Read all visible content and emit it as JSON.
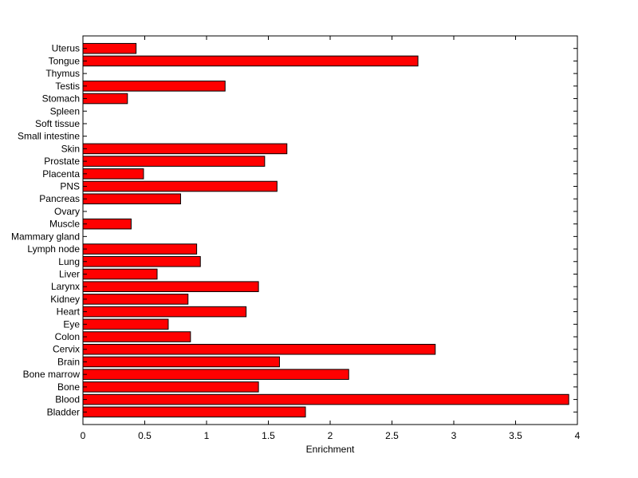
{
  "chart_data": {
    "type": "bar",
    "orientation": "horizontal",
    "title": "",
    "xlabel": "Enrichment",
    "ylabel": "",
    "xlim": [
      0,
      4
    ],
    "xticks": [
      0,
      0.5,
      1,
      1.5,
      2,
      2.5,
      3,
      3.5,
      4
    ],
    "xtick_labels": [
      "0",
      "0.5",
      "1",
      "1.5",
      "2",
      "2.5",
      "3",
      "3.5",
      "4"
    ],
    "grid": false,
    "legend": "none",
    "bar_color": "#ff0000",
    "categories": [
      "Bladder",
      "Blood",
      "Bone",
      "Bone marrow",
      "Brain",
      "Cervix",
      "Colon",
      "Eye",
      "Heart",
      "Kidney",
      "Larynx",
      "Liver",
      "Lung",
      "Lymph node",
      "Mammary gland",
      "Muscle",
      "Ovary",
      "Pancreas",
      "PNS",
      "Placenta",
      "Prostate",
      "Skin",
      "Small intestine",
      "Soft tissue",
      "Spleen",
      "Stomach",
      "Testis",
      "Thymus",
      "Tongue",
      "Uterus"
    ],
    "values": [
      1.8,
      3.93,
      1.42,
      2.15,
      1.59,
      2.85,
      0.87,
      0.69,
      1.32,
      0.85,
      1.42,
      0.6,
      0.95,
      0.92,
      0,
      0.39,
      0,
      0.79,
      1.57,
      0.49,
      1.47,
      1.65,
      0,
      0,
      0,
      0.36,
      1.15,
      0,
      2.71,
      0.43
    ]
  }
}
